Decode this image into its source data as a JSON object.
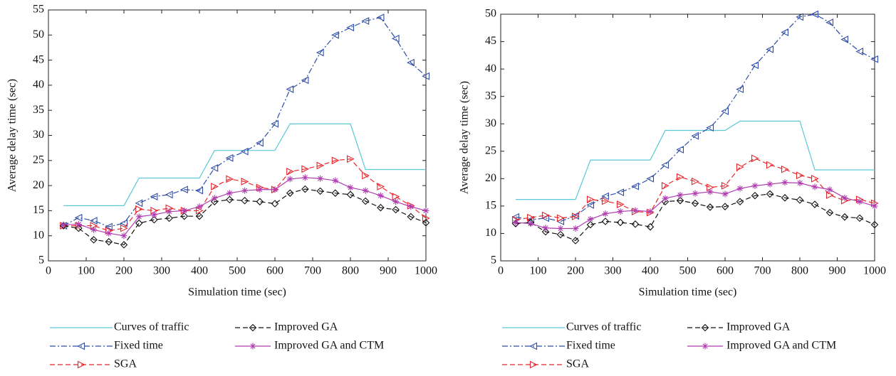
{
  "chart_data": [
    {
      "type": "line",
      "xlabel": "Simulation time (sec)",
      "ylabel": "Average delay time (sec)",
      "x": [
        40,
        80,
        120,
        160,
        200,
        240,
        280,
        320,
        360,
        400,
        440,
        480,
        520,
        560,
        600,
        640,
        680,
        720,
        760,
        800,
        840,
        880,
        920,
        960,
        1000
      ],
      "xlim": [
        0,
        1000
      ],
      "xticks": [
        0,
        100,
        200,
        300,
        400,
        500,
        600,
        700,
        800,
        900,
        1000
      ],
      "ylim": [
        5,
        55
      ],
      "yticks": [
        5,
        10,
        15,
        20,
        25,
        30,
        35,
        40,
        45,
        50,
        55
      ],
      "grid": false,
      "series": [
        {
          "name": "Curves of traffic",
          "color": "#5bc8d8",
          "dash": "solid",
          "marker": "none",
          "values": [
            16,
            16,
            16,
            16,
            16,
            21.5,
            21.5,
            21.5,
            21.5,
            21.5,
            27,
            27,
            27,
            27,
            27,
            32.3,
            32.3,
            32.3,
            32.3,
            32.3,
            23.2,
            23.2,
            23.2,
            23.2,
            23.2
          ]
        },
        {
          "name": "Fixed time",
          "color": "#2f4ea8",
          "dash": "dashdot",
          "marker": "triangle-left",
          "values": [
            12,
            13.6,
            13,
            11.8,
            12.5,
            16.5,
            17.8,
            18.2,
            19.2,
            19,
            23.5,
            25.5,
            26.8,
            28.5,
            32.3,
            39.2,
            41,
            46.5,
            50,
            51.5,
            52.8,
            53.5,
            49.3,
            44.5,
            41.8
          ]
        },
        {
          "name": "SGA",
          "color": "#e8262b",
          "dash": "dashed",
          "marker": "triangle-right",
          "values": [
            12,
            12,
            12,
            11,
            11.5,
            15.3,
            15,
            15.5,
            15,
            15,
            19.8,
            21.3,
            20.8,
            19.6,
            19.2,
            22.8,
            23.3,
            24,
            25,
            25.3,
            22,
            19.8,
            17.8,
            16,
            13.5
          ]
        },
        {
          "name": "Improved GA",
          "color": "#111111",
          "dash": "dashed",
          "marker": "diamond",
          "values": [
            12,
            11.5,
            9.2,
            8.8,
            8.2,
            12.5,
            13.2,
            13.5,
            13.9,
            13.9,
            16.8,
            17.2,
            17,
            16.8,
            16.4,
            18.5,
            19.3,
            18.9,
            18.5,
            18.2,
            16.9,
            15.6,
            15.2,
            13.8,
            12.6
          ]
        },
        {
          "name": "Improved GA and CTM",
          "color": "#b03cb0",
          "dash": "solid",
          "marker": "star",
          "values": [
            12.2,
            12.3,
            11.2,
            10.5,
            10,
            13.8,
            14.2,
            14.8,
            15,
            15.8,
            17.5,
            18.5,
            19,
            19.2,
            19.2,
            21.3,
            21.6,
            21.4,
            21,
            19.6,
            19,
            18,
            16.8,
            15.8,
            15
          ]
        }
      ]
    },
    {
      "type": "line",
      "xlabel": "Simulation time (sec)",
      "ylabel": "Average delay time (sec)",
      "x": [
        40,
        80,
        120,
        160,
        200,
        240,
        280,
        320,
        360,
        400,
        440,
        480,
        520,
        560,
        600,
        640,
        680,
        720,
        760,
        800,
        840,
        880,
        920,
        960,
        1000
      ],
      "xlim": [
        0,
        1000
      ],
      "xticks": [
        0,
        100,
        200,
        300,
        400,
        500,
        600,
        700,
        800,
        900,
        1000
      ],
      "ylim": [
        5,
        50
      ],
      "yticks": [
        5,
        10,
        15,
        20,
        25,
        30,
        35,
        40,
        45,
        50
      ],
      "grid": false,
      "series": [
        {
          "name": "Curves of traffic",
          "color": "#5bc8d8",
          "dash": "solid",
          "marker": "none",
          "values": [
            16.2,
            16.2,
            16.2,
            16.2,
            16.2,
            23.4,
            23.4,
            23.4,
            23.4,
            23.4,
            28.8,
            28.8,
            28.8,
            28.8,
            28.8,
            30.5,
            30.5,
            30.5,
            30.5,
            30.5,
            21.6,
            21.6,
            21.6,
            21.6,
            21.6
          ]
        },
        {
          "name": "Fixed time",
          "color": "#2f4ea8",
          "dash": "dashdot",
          "marker": "triangle-left",
          "values": [
            13,
            12.5,
            12.8,
            12.2,
            13.2,
            15.2,
            16.8,
            17.5,
            18.6,
            20,
            22.5,
            25.3,
            27.8,
            29.3,
            32.3,
            36.3,
            40.7,
            43.6,
            46.7,
            49.5,
            50,
            48.5,
            45.4,
            43.2,
            41.8
          ]
        },
        {
          "name": "SGA",
          "color": "#e8262b",
          "dash": "dashed",
          "marker": "triangle-right",
          "values": [
            12.5,
            12.9,
            13.3,
            12.8,
            13.1,
            16.2,
            15.9,
            15.3,
            14,
            13.8,
            18.7,
            20.3,
            19.5,
            18.4,
            18.7,
            22.1,
            23.7,
            22.5,
            21.7,
            20.6,
            20,
            17,
            16,
            16.2,
            15.5
          ]
        },
        {
          "name": "Improved GA",
          "color": "#111111",
          "dash": "dashed",
          "marker": "diamond",
          "values": [
            11.8,
            12,
            10.3,
            9.8,
            8.7,
            11.6,
            12.2,
            12,
            11.7,
            11.2,
            15.8,
            16,
            15.5,
            14.8,
            14.9,
            15.8,
            16.9,
            17.2,
            16.5,
            16.1,
            15.3,
            13.8,
            13,
            12.8,
            11.6
          ]
        },
        {
          "name": "Improved GA and CTM",
          "color": "#b03cb0",
          "dash": "solid",
          "marker": "star",
          "values": [
            12,
            11.8,
            11,
            10.9,
            10.9,
            12.6,
            13.6,
            14,
            14.2,
            14,
            16.4,
            17,
            17.3,
            17.6,
            17.2,
            18.2,
            18.7,
            19,
            19.3,
            19.2,
            18.5,
            18,
            16.5,
            15.8,
            15
          ]
        }
      ]
    }
  ]
}
